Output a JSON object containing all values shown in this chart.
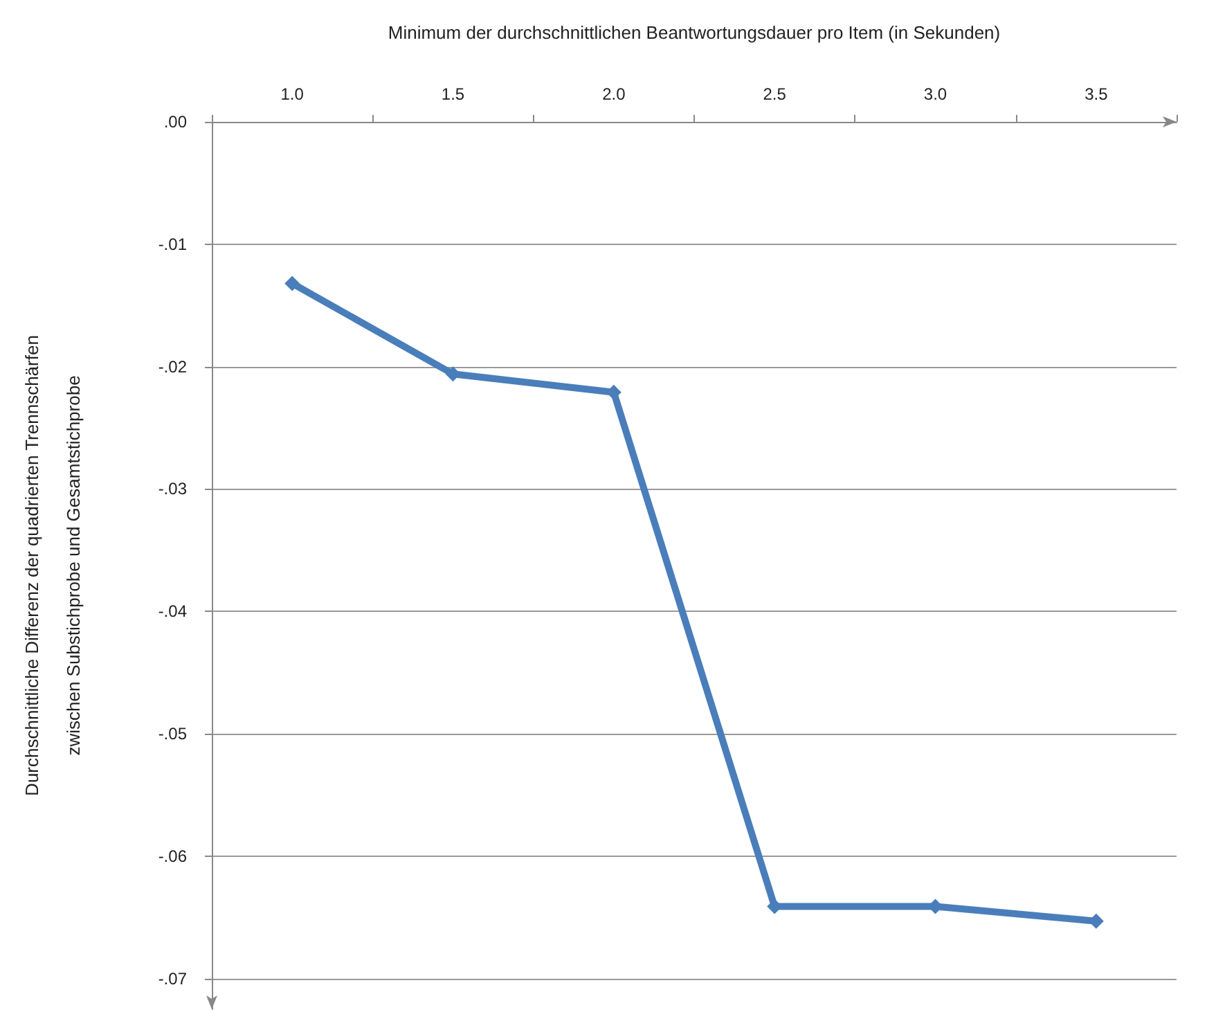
{
  "chart_data": {
    "type": "line",
    "xlabel": "Minimum der durchschnittlichen Beantwortungsdauer pro Item (in Sekunden)",
    "ylabel": "Durchschnittliche Differenz der quadrierten Trennschärfen\nzwischen Substichprobe und Gesamtstichprobe",
    "categories": [
      "1.0",
      "1.5",
      "2.0",
      "2.5",
      "3.0",
      "3.5"
    ],
    "series": [
      {
        "color": "#4a7ebb",
        "values": [
          -0.0132,
          -0.0206,
          -0.0221,
          -0.0641,
          -0.0641,
          -0.0653
        ]
      }
    ],
    "ylim": [
      -0.0725,
      0
    ],
    "yticks": [
      {
        "value": 0,
        "label": ".00"
      },
      {
        "value": -0.01,
        "label": "-.01"
      },
      {
        "value": -0.02,
        "label": "-.02"
      },
      {
        "value": -0.03,
        "label": "-.03"
      },
      {
        "value": -0.04,
        "label": "-.04"
      },
      {
        "value": -0.05,
        "label": "-.05"
      },
      {
        "value": -0.06,
        "label": "-.06"
      },
      {
        "value": -0.07,
        "label": "-.07"
      }
    ],
    "grid": "y",
    "marker": "diamond",
    "line_style": "solid"
  }
}
